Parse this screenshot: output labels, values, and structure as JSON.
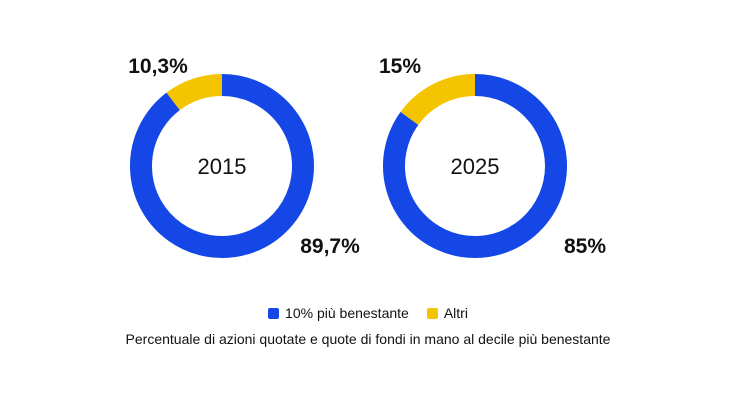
{
  "chart_data": {
    "type": "pie",
    "style": "donut",
    "colors": {
      "top_decile": "#1447E6",
      "others": "#F5C400"
    },
    "series_names": [
      "10% più benestante",
      "Altri"
    ],
    "charts": [
      {
        "center_label": "2015",
        "slices": [
          {
            "name": "10% più benestante",
            "value": 89.7,
            "label": "89,7%"
          },
          {
            "name": "Altri",
            "value": 10.3,
            "label": "10,3%"
          }
        ]
      },
      {
        "center_label": "2025",
        "slices": [
          {
            "name": "10% più benestante",
            "value": 85,
            "label": "85%"
          },
          {
            "name": "Altri",
            "value": 15,
            "label": "15%"
          }
        ]
      }
    ],
    "legend": [
      {
        "name": "10% più benestante",
        "color": "#1447E6"
      },
      {
        "name": "Altri",
        "color": "#F5C400"
      }
    ],
    "caption": "Percentuale di azioni quotate e quote di fondi in mano al decile più benestante",
    "legend_position": "bottom-center"
  }
}
